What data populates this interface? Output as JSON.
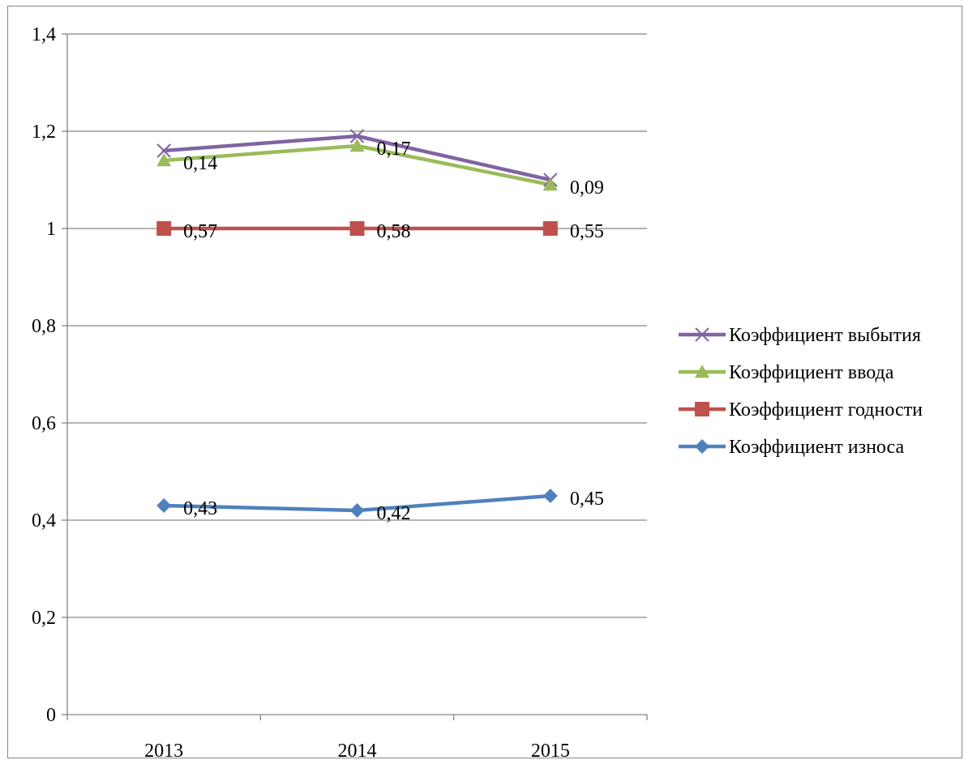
{
  "chart_data": {
    "type": "line",
    "categories": [
      "2013",
      "2014",
      "2015"
    ],
    "ylim": [
      0,
      1.4
    ],
    "yticks": [
      "0",
      "0,2",
      "0,4",
      "0,6",
      "0,8",
      "1",
      "1,2",
      "1,4"
    ],
    "grid": true,
    "legend_position": "right",
    "series": [
      {
        "name": "Коэффициент выбытия",
        "values": [
          1.16,
          1.19,
          1.1
        ],
        "labels": [
          "",
          "",
          ""
        ],
        "color": "#8064A2",
        "marker": "x"
      },
      {
        "name": "Коэффициент ввода",
        "values": [
          1.14,
          1.17,
          1.09
        ],
        "labels": [
          "0,14",
          "0,17",
          "0,09"
        ],
        "color": "#9BBB59",
        "marker": "triangle"
      },
      {
        "name": "Коэффициент годности",
        "values": [
          1.0,
          1.0,
          1.0
        ],
        "labels": [
          "0,57",
          "0,58",
          "0,55"
        ],
        "color": "#C0504D",
        "marker": "square"
      },
      {
        "name": "Коэффициент износа",
        "values": [
          0.43,
          0.42,
          0.45
        ],
        "labels": [
          "0,43",
          "0,42",
          "0,45"
        ],
        "color": "#4F81BD",
        "marker": "diamond"
      }
    ]
  }
}
